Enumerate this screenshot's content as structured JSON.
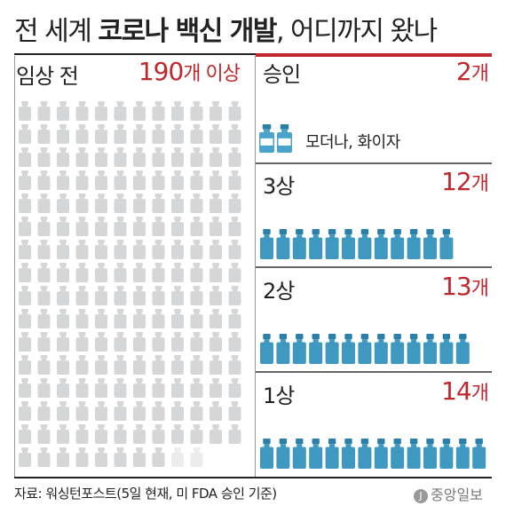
{
  "title": {
    "part1": "전 세계 ",
    "bold": "코로나 백신 개발",
    "part2": ", 어디까지 왔나"
  },
  "chart_data": {
    "type": "pictogram",
    "unit": "개",
    "categories": [
      "임상 전",
      "승인",
      "3상",
      "2상",
      "1상"
    ],
    "values": [
      190,
      2,
      12,
      13,
      14
    ],
    "preclinical": {
      "label": "임상 전",
      "value_text": "190",
      "unit": "개",
      "suffix": " 이상"
    },
    "stages": [
      {
        "label": "승인",
        "value_text": "2",
        "unit": "개",
        "note": "모더나, 화이자"
      },
      {
        "label": "3상",
        "value_text": "12",
        "unit": "개"
      },
      {
        "label": "2상",
        "value_text": "13",
        "unit": "개"
      },
      {
        "label": "1상",
        "value_text": "14",
        "unit": "개"
      }
    ]
  },
  "colors": {
    "preclinical_vial": "#d4d6d7",
    "preclinical_faded": "#ececec",
    "trial_vial": "#3e98c0",
    "trial_cap": "#2c7fa8",
    "approved_vial": "#4aa3cc",
    "accent": "#c0272d"
  },
  "source": "자료: 워싱턴포스트(5일 현재, 미 FDA 승인 기준)",
  "logo": {
    "mark": "J",
    "text": "중앙일보"
  }
}
